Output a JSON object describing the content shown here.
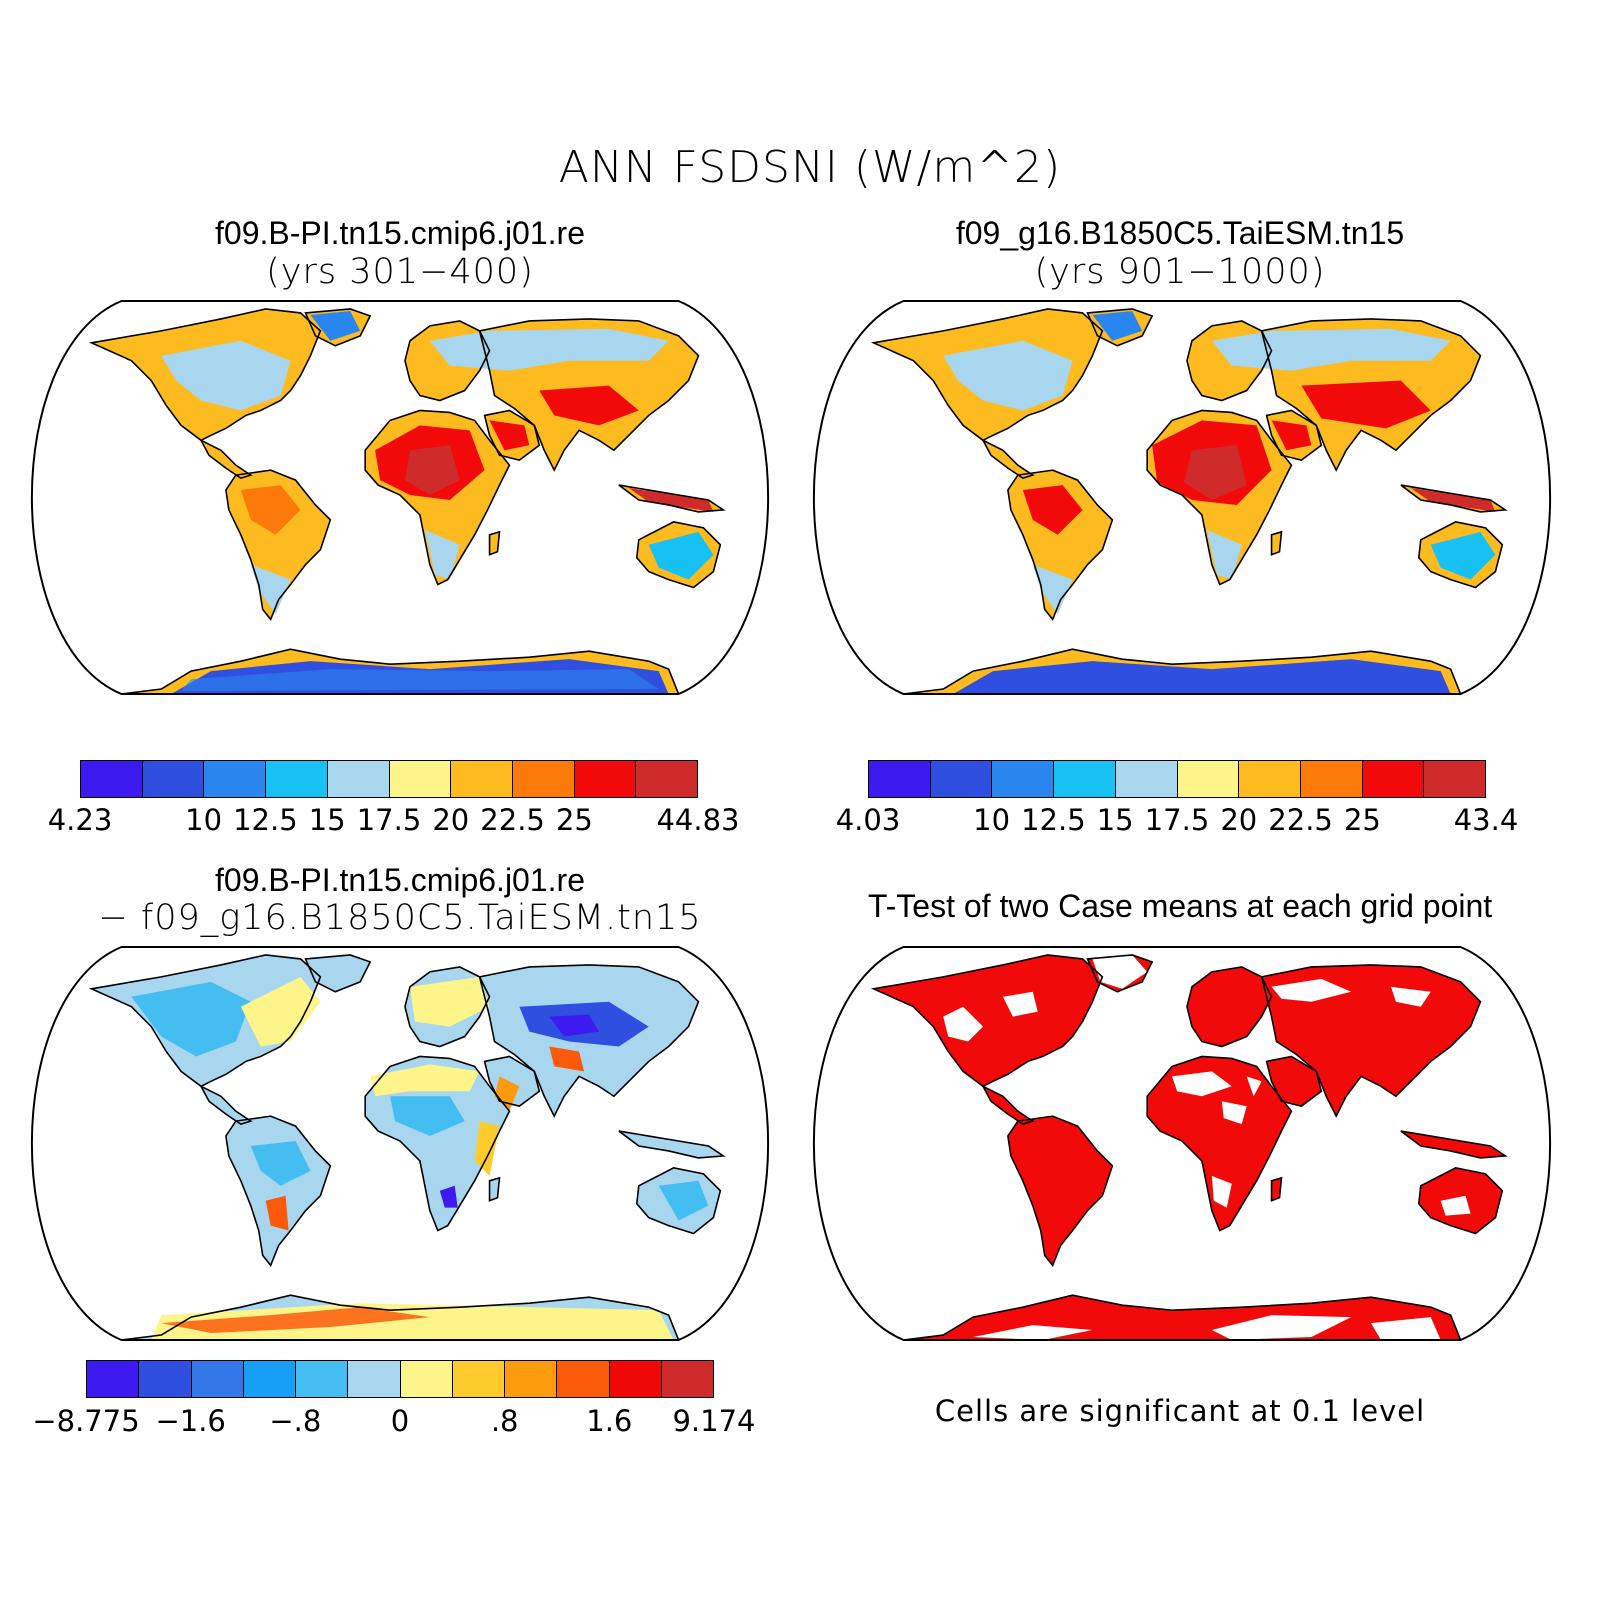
{
  "title": "ANN FSDSNI (W/m^2)",
  "panels": [
    {
      "title": "f09.B-PI.tn15.cmip6.j01.re",
      "subtitle": "(yrs 301−400)"
    },
    {
      "title": "f09_g16.B1850C5.TaiESM.tn15",
      "subtitle": "(yrs 901−1000)"
    },
    {
      "title": "f09.B-PI.tn15.cmip6.j01.re",
      "subtitle": "− f09_g16.B1850C5.TaiESM.tn15"
    },
    {
      "title": "T-Test of two Case means at each grid point",
      "subtitle": ""
    }
  ],
  "colorbars": [
    {
      "colors": [
        "#3d1af0",
        "#2f4fe0",
        "#2a86ef",
        "#17c1f3",
        "#a8d6ef",
        "#fdf58a",
        "#fdbb1f",
        "#fb7a0a",
        "#f20a0a",
        "#d02b2b"
      ],
      "labels": [
        "4.23",
        "10",
        "12.5",
        "15",
        "17.5",
        "20",
        "22.5",
        "25",
        "44.83"
      ]
    },
    {
      "colors": [
        "#3d1af0",
        "#2f4fe0",
        "#2a86ef",
        "#17c1f3",
        "#a8d6ef",
        "#fdf58a",
        "#fdbb1f",
        "#fb7a0a",
        "#f20a0a",
        "#d02b2b"
      ],
      "labels": [
        "4.03",
        "10",
        "12.5",
        "15",
        "17.5",
        "20",
        "22.5",
        "25",
        "43.4"
      ]
    },
    {
      "colors": [
        "#3d1af0",
        "#2f4fe0",
        "#3377e8",
        "#179ff5",
        "#44bdf0",
        "#a8d6ef",
        "#fdf58a",
        "#fdcb2c",
        "#fb9b0d",
        "#fb5a0a",
        "#f00808",
        "#d02b2b"
      ],
      "labels": [
        "−8.775",
        "−1.6",
        "−.8",
        "0",
        ".8",
        "1.6",
        "9.174"
      ]
    }
  ],
  "note": "Cells are significant at 0.1 level",
  "chart_data": {
    "type": "heatmap",
    "variable": "ANN FSDSNI (W/m^2)",
    "panels": [
      {
        "case": "f09.B-PI.tn15.cmip6.j01.re",
        "years": "301-400",
        "min": 4.23,
        "max": 44.83,
        "levels": [
          10,
          12.5,
          15,
          17.5,
          20,
          22.5,
          25
        ]
      },
      {
        "case": "f09_g16.B1850C5.TaiESM.tn15",
        "years": "901-1000",
        "min": 4.03,
        "max": 43.4,
        "levels": [
          10,
          12.5,
          15,
          17.5,
          20,
          22.5,
          25
        ]
      },
      {
        "case": "difference",
        "min": -8.775,
        "max": 9.174,
        "levels": [
          -1.6,
          -0.8,
          0,
          0.8,
          1.6
        ]
      },
      {
        "case": "t-test",
        "significance_level": 0.1
      }
    ]
  }
}
